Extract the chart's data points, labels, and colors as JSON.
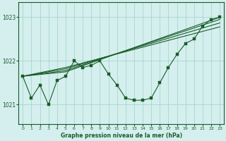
{
  "title": "Graphe pression niveau de la mer (hPa)",
  "bg_color": "#d4efee",
  "grid_color": "#a8d5cc",
  "line_color": "#1a5c2a",
  "xlim": [
    -0.5,
    23.5
  ],
  "ylim": [
    1020.55,
    1023.35
  ],
  "yticks": [
    1021,
    1022,
    1023
  ],
  "xticks": [
    0,
    1,
    2,
    3,
    4,
    5,
    6,
    7,
    8,
    9,
    10,
    11,
    12,
    13,
    14,
    15,
    16,
    17,
    18,
    19,
    20,
    21,
    22,
    23
  ],
  "series": [
    {
      "x": [
        0,
        1,
        2,
        3,
        4,
        5,
        6,
        7,
        8,
        9,
        10,
        11,
        12,
        13,
        14,
        15,
        16,
        17,
        18,
        19,
        20,
        21,
        22,
        23
      ],
      "y": [
        1021.65,
        1021.15,
        1021.45,
        1021.0,
        1021.55,
        1021.65,
        1022.0,
        1021.85,
        1021.9,
        1022.0,
        1021.7,
        1021.45,
        1021.15,
        1021.1,
        1021.1,
        1021.15,
        1021.5,
        1021.85,
        1022.15,
        1022.4,
        1022.5,
        1022.8,
        1022.95,
        1023.0
      ],
      "marker": true
    },
    {
      "x": [
        0,
        5,
        23
      ],
      "y": [
        1021.65,
        1021.75,
        1023.0
      ],
      "marker": false
    },
    {
      "x": [
        0,
        5,
        23
      ],
      "y": [
        1021.65,
        1021.78,
        1022.95
      ],
      "marker": false
    },
    {
      "x": [
        0,
        5,
        23
      ],
      "y": [
        1021.65,
        1021.82,
        1022.87
      ],
      "marker": false
    },
    {
      "x": [
        0,
        5,
        23
      ],
      "y": [
        1021.65,
        1021.85,
        1022.78
      ],
      "marker": false
    }
  ]
}
